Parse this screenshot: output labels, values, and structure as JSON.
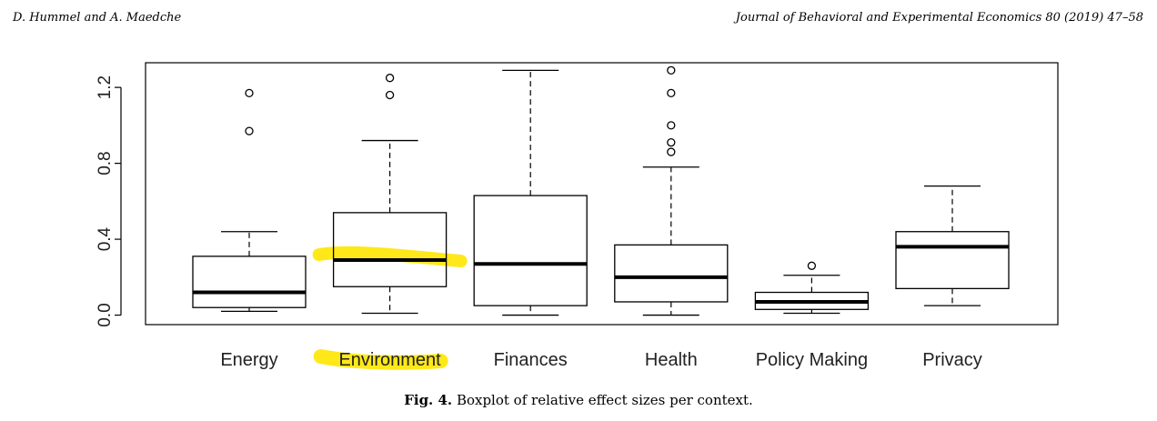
{
  "header": {
    "authors": "D. Hummel and A. Maedche",
    "journal": "Journal of Behavioral and Experimental Economics 80 (2019) 47–58"
  },
  "caption": {
    "label": "Fig. 4.",
    "text": " Boxplot of relative effect sizes per context."
  },
  "highlight_color": "#ffe600",
  "chart_data": {
    "type": "boxplot",
    "title": "",
    "xlabel": "",
    "ylabel": "",
    "ylim": [
      -0.05,
      1.33
    ],
    "yticks": [
      "0.0",
      "0.4",
      "0.8",
      "1.2"
    ],
    "ytick_values": [
      0.0,
      0.4,
      0.8,
      1.2
    ],
    "highlighted_category": "Environment",
    "series": [
      {
        "category": "Energy",
        "whisker_low": 0.02,
        "q1": 0.04,
        "median": 0.12,
        "q3": 0.31,
        "whisker_high": 0.44,
        "outliers": [
          0.97,
          1.17
        ]
      },
      {
        "category": "Environment",
        "whisker_low": 0.01,
        "q1": 0.15,
        "median": 0.29,
        "q3": 0.54,
        "whisker_high": 0.92,
        "outliers": [
          1.16,
          1.25
        ]
      },
      {
        "category": "Finances",
        "whisker_low": 0.0,
        "q1": 0.05,
        "median": 0.27,
        "q3": 0.63,
        "whisker_high": 1.29,
        "outliers": []
      },
      {
        "category": "Health",
        "whisker_low": 0.0,
        "q1": 0.07,
        "median": 0.2,
        "q3": 0.37,
        "whisker_high": 0.78,
        "outliers": [
          0.86,
          0.91,
          1.0,
          1.17,
          1.29
        ]
      },
      {
        "category": "Policy Making",
        "whisker_low": 0.01,
        "q1": 0.03,
        "median": 0.07,
        "q3": 0.12,
        "whisker_high": 0.21,
        "outliers": [
          0.26
        ]
      },
      {
        "category": "Privacy",
        "whisker_low": 0.05,
        "q1": 0.14,
        "median": 0.36,
        "q3": 0.44,
        "whisker_high": 0.68,
        "outliers": []
      }
    ]
  }
}
